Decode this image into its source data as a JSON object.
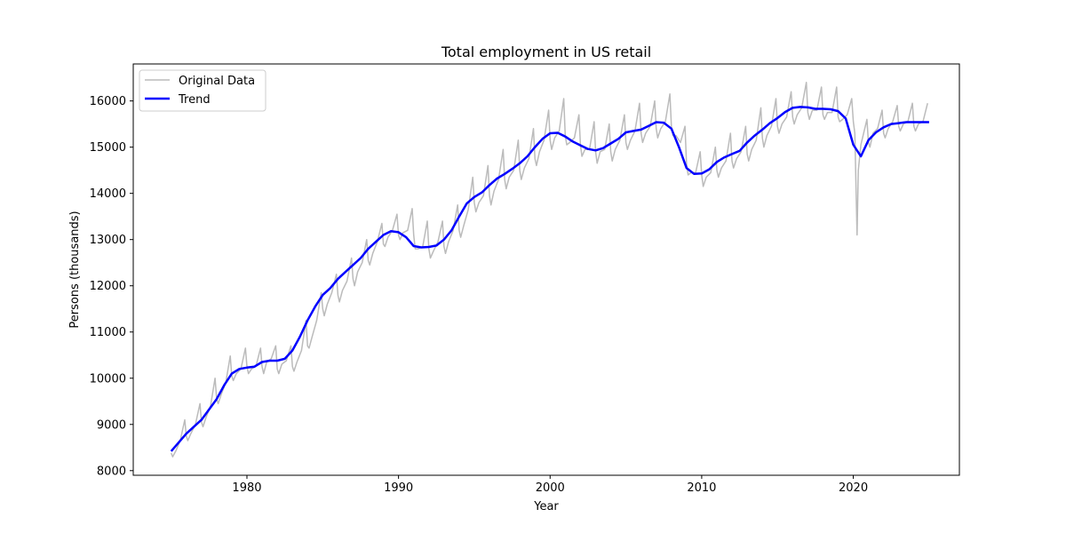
{
  "chart_data": {
    "type": "line",
    "title": "Total employment in US retail",
    "xlabel": "Year",
    "ylabel": "Persons (thousands)",
    "xlim": [
      1972.5,
      2027.0
    ],
    "ylim": [
      7900,
      16800
    ],
    "xticks": [
      1980,
      1990,
      2000,
      2010,
      2020
    ],
    "yticks": [
      8000,
      9000,
      10000,
      11000,
      12000,
      13000,
      14000,
      15000,
      16000
    ],
    "grid": false,
    "legend": {
      "position": "top-left",
      "entries": [
        "Original Data",
        "Trend"
      ]
    },
    "series": [
      {
        "name": "Original Data",
        "color": "#bbbbbb",
        "style": "monthly, strong seasonal peaks each December",
        "x": [
          1975.0,
          1975.1,
          1975.3,
          1975.6,
          1975.9,
          1976.0,
          1976.1,
          1976.3,
          1976.6,
          1976.9,
          1977.0,
          1977.1,
          1977.3,
          1977.6,
          1977.9,
          1978.0,
          1978.1,
          1978.3,
          1978.6,
          1978.9,
          1979.0,
          1979.1,
          1979.3,
          1979.6,
          1979.9,
          1980.0,
          1980.1,
          1980.3,
          1980.6,
          1980.9,
          1981.0,
          1981.1,
          1981.3,
          1981.6,
          1981.9,
          1982.0,
          1982.1,
          1982.3,
          1982.6,
          1982.9,
          1983.0,
          1983.1,
          1983.3,
          1983.6,
          1983.9,
          1984.0,
          1984.1,
          1984.3,
          1984.6,
          1984.9,
          1985.0,
          1985.1,
          1985.3,
          1985.6,
          1985.9,
          1986.0,
          1986.1,
          1986.3,
          1986.6,
          1986.9,
          1987.0,
          1987.1,
          1987.3,
          1987.6,
          1987.9,
          1988.0,
          1988.1,
          1988.3,
          1988.6,
          1988.9,
          1989.0,
          1989.1,
          1989.3,
          1989.6,
          1989.9,
          1990.0,
          1990.1,
          1990.3,
          1990.6,
          1990.9,
          1991.0,
          1991.1,
          1991.3,
          1991.6,
          1991.9,
          1992.0,
          1992.1,
          1992.3,
          1992.6,
          1992.9,
          1993.0,
          1993.1,
          1993.3,
          1993.6,
          1993.9,
          1994.0,
          1994.1,
          1994.3,
          1994.6,
          1994.9,
          1995.0,
          1995.1,
          1995.3,
          1995.6,
          1995.9,
          1996.0,
          1996.1,
          1996.3,
          1996.6,
          1996.9,
          1997.0,
          1997.1,
          1997.3,
          1997.6,
          1997.9,
          1998.0,
          1998.1,
          1998.3,
          1998.6,
          1998.9,
          1999.0,
          1999.1,
          1999.3,
          1999.6,
          1999.9,
          2000.0,
          2000.1,
          2000.3,
          2000.6,
          2000.9,
          2001.0,
          2001.1,
          2001.3,
          2001.6,
          2001.9,
          2002.0,
          2002.1,
          2002.3,
          2002.6,
          2002.9,
          2003.0,
          2003.1,
          2003.3,
          2003.6,
          2003.9,
          2004.0,
          2004.1,
          2004.3,
          2004.6,
          2004.9,
          2005.0,
          2005.1,
          2005.3,
          2005.6,
          2005.9,
          2006.0,
          2006.1,
          2006.3,
          2006.6,
          2006.9,
          2007.0,
          2007.1,
          2007.3,
          2007.6,
          2007.9,
          2008.0,
          2008.1,
          2008.3,
          2008.6,
          2008.9,
          2009.0,
          2009.1,
          2009.3,
          2009.6,
          2009.9,
          2010.0,
          2010.1,
          2010.3,
          2010.6,
          2010.9,
          2011.0,
          2011.1,
          2011.3,
          2011.6,
          2011.9,
          2012.0,
          2012.1,
          2012.3,
          2012.6,
          2012.9,
          2013.0,
          2013.1,
          2013.3,
          2013.6,
          2013.9,
          2014.0,
          2014.1,
          2014.3,
          2014.6,
          2014.9,
          2015.0,
          2015.1,
          2015.3,
          2015.6,
          2015.9,
          2016.0,
          2016.1,
          2016.3,
          2016.6,
          2016.9,
          2017.0,
          2017.1,
          2017.3,
          2017.6,
          2017.9,
          2018.0,
          2018.1,
          2018.3,
          2018.6,
          2018.9,
          2019.0,
          2019.1,
          2019.3,
          2019.6,
          2019.9,
          2020.0,
          2020.1,
          2020.25,
          2020.33,
          2020.5,
          2020.9,
          2021.0,
          2021.1,
          2021.3,
          2021.6,
          2021.9,
          2022.0,
          2022.1,
          2022.3,
          2022.6,
          2022.9,
          2023.0,
          2023.1,
          2023.3,
          2023.6,
          2023.9,
          2024.0,
          2024.1,
          2024.3,
          2024.6,
          2024.9
        ],
        "values": [
          8380,
          8300,
          8420,
          8650,
          9100,
          8750,
          8650,
          8800,
          9000,
          9450,
          9050,
          8950,
          9150,
          9400,
          10000,
          9550,
          9450,
          9650,
          9900,
          10480,
          10050,
          9950,
          10100,
          10200,
          10650,
          10250,
          10100,
          10200,
          10260,
          10650,
          10250,
          10100,
          10350,
          10420,
          10700,
          10200,
          10100,
          10300,
          10380,
          10700,
          10250,
          10150,
          10350,
          10600,
          11250,
          10700,
          10650,
          10900,
          11250,
          11850,
          11500,
          11350,
          11600,
          11850,
          12250,
          11800,
          11650,
          11900,
          12100,
          12600,
          12150,
          12000,
          12300,
          12500,
          13000,
          12550,
          12450,
          12700,
          12950,
          13350,
          12900,
          12850,
          13050,
          13200,
          13550,
          13100,
          13000,
          13150,
          13200,
          13670,
          13100,
          12800,
          12800,
          12850,
          13400,
          12800,
          12600,
          12750,
          12950,
          13400,
          12850,
          12700,
          12950,
          13200,
          13750,
          13200,
          13050,
          13300,
          13650,
          14350,
          13800,
          13600,
          13800,
          13950,
          14600,
          13950,
          13750,
          14050,
          14300,
          14950,
          14300,
          14100,
          14350,
          14500,
          15150,
          14500,
          14300,
          14550,
          14750,
          15400,
          14750,
          14600,
          14900,
          15150,
          15800,
          15150,
          14950,
          15200,
          15350,
          16050,
          15250,
          15050,
          15100,
          15200,
          15700,
          15050,
          14800,
          14950,
          14950,
          15550,
          14900,
          14650,
          14900,
          14950,
          15500,
          14900,
          14700,
          14950,
          15150,
          15700,
          15100,
          14950,
          15150,
          15350,
          15950,
          15300,
          15100,
          15300,
          15450,
          16000,
          15400,
          15200,
          15400,
          15550,
          16150,
          15450,
          15250,
          15250,
          15100,
          15450,
          14650,
          14400,
          14450,
          14450,
          14900,
          14400,
          14150,
          14350,
          14450,
          15000,
          14500,
          14350,
          14550,
          14700,
          15300,
          14700,
          14550,
          14750,
          14900,
          15450,
          14850,
          14700,
          14950,
          15150,
          15850,
          15200,
          15000,
          15250,
          15450,
          16050,
          15450,
          15300,
          15500,
          15650,
          16200,
          15650,
          15500,
          15700,
          15850,
          16400,
          15750,
          15600,
          15800,
          15800,
          16300,
          15700,
          15600,
          15750,
          15750,
          16300,
          15650,
          15550,
          15600,
          15700,
          16050,
          15550,
          15300,
          13100,
          14500,
          15050,
          15600,
          15100,
          15000,
          15300,
          15400,
          15800,
          15300,
          15200,
          15400,
          15550,
          15900,
          15450,
          15350,
          15500,
          15550,
          15950,
          15450,
          15350,
          15500,
          15550,
          15950
        ]
      },
      {
        "name": "Trend",
        "color": "#0000ff",
        "x": [
          1975.0,
          1976.0,
          1977.0,
          1978.0,
          1978.5,
          1979.0,
          1979.5,
          1980.0,
          1980.5,
          1981.0,
          1981.5,
          1982.0,
          1982.5,
          1983.0,
          1983.5,
          1984.0,
          1984.5,
          1985.0,
          1985.5,
          1986.0,
          1986.5,
          1987.0,
          1987.5,
          1988.0,
          1988.5,
          1989.0,
          1989.5,
          1990.0,
          1990.5,
          1991.0,
          1991.5,
          1992.0,
          1992.5,
          1993.0,
          1993.5,
          1994.0,
          1994.5,
          1995.0,
          1995.5,
          1996.0,
          1996.5,
          1997.0,
          1997.5,
          1998.0,
          1998.5,
          1999.0,
          1999.5,
          2000.0,
          2000.5,
          2001.0,
          2001.5,
          2002.0,
          2002.5,
          2003.0,
          2003.5,
          2004.0,
          2004.5,
          2005.0,
          2005.5,
          2006.0,
          2006.5,
          2007.0,
          2007.5,
          2008.0,
          2008.5,
          2009.0,
          2009.5,
          2010.0,
          2010.5,
          2011.0,
          2011.5,
          2012.0,
          2012.5,
          2013.0,
          2013.5,
          2014.0,
          2014.5,
          2015.0,
          2015.5,
          2016.0,
          2016.5,
          2017.0,
          2017.5,
          2018.0,
          2018.5,
          2019.0,
          2019.5,
          2020.0,
          2020.5,
          2021.0,
          2021.5,
          2022.0,
          2022.5,
          2023.0,
          2023.5,
          2024.0,
          2024.5,
          2025.0
        ],
        "values": [
          8420,
          8800,
          9100,
          9550,
          9850,
          10100,
          10200,
          10230,
          10250,
          10350,
          10380,
          10380,
          10420,
          10600,
          10900,
          11250,
          11550,
          11800,
          11950,
          12150,
          12300,
          12450,
          12600,
          12800,
          12950,
          13100,
          13180,
          13160,
          13050,
          12860,
          12830,
          12840,
          12870,
          13000,
          13200,
          13500,
          13780,
          13920,
          14020,
          14180,
          14320,
          14420,
          14530,
          14650,
          14800,
          15000,
          15180,
          15300,
          15310,
          15230,
          15120,
          15040,
          14960,
          14930,
          14980,
          15080,
          15180,
          15320,
          15350,
          15380,
          15460,
          15540,
          15530,
          15400,
          15000,
          14550,
          14420,
          14430,
          14520,
          14680,
          14780,
          14850,
          14920,
          15100,
          15250,
          15380,
          15520,
          15630,
          15760,
          15850,
          15870,
          15860,
          15830,
          15830,
          15820,
          15780,
          15620,
          15050,
          14800,
          15150,
          15320,
          15430,
          15500,
          15520,
          15540,
          15540,
          15540,
          15540
        ]
      }
    ]
  }
}
